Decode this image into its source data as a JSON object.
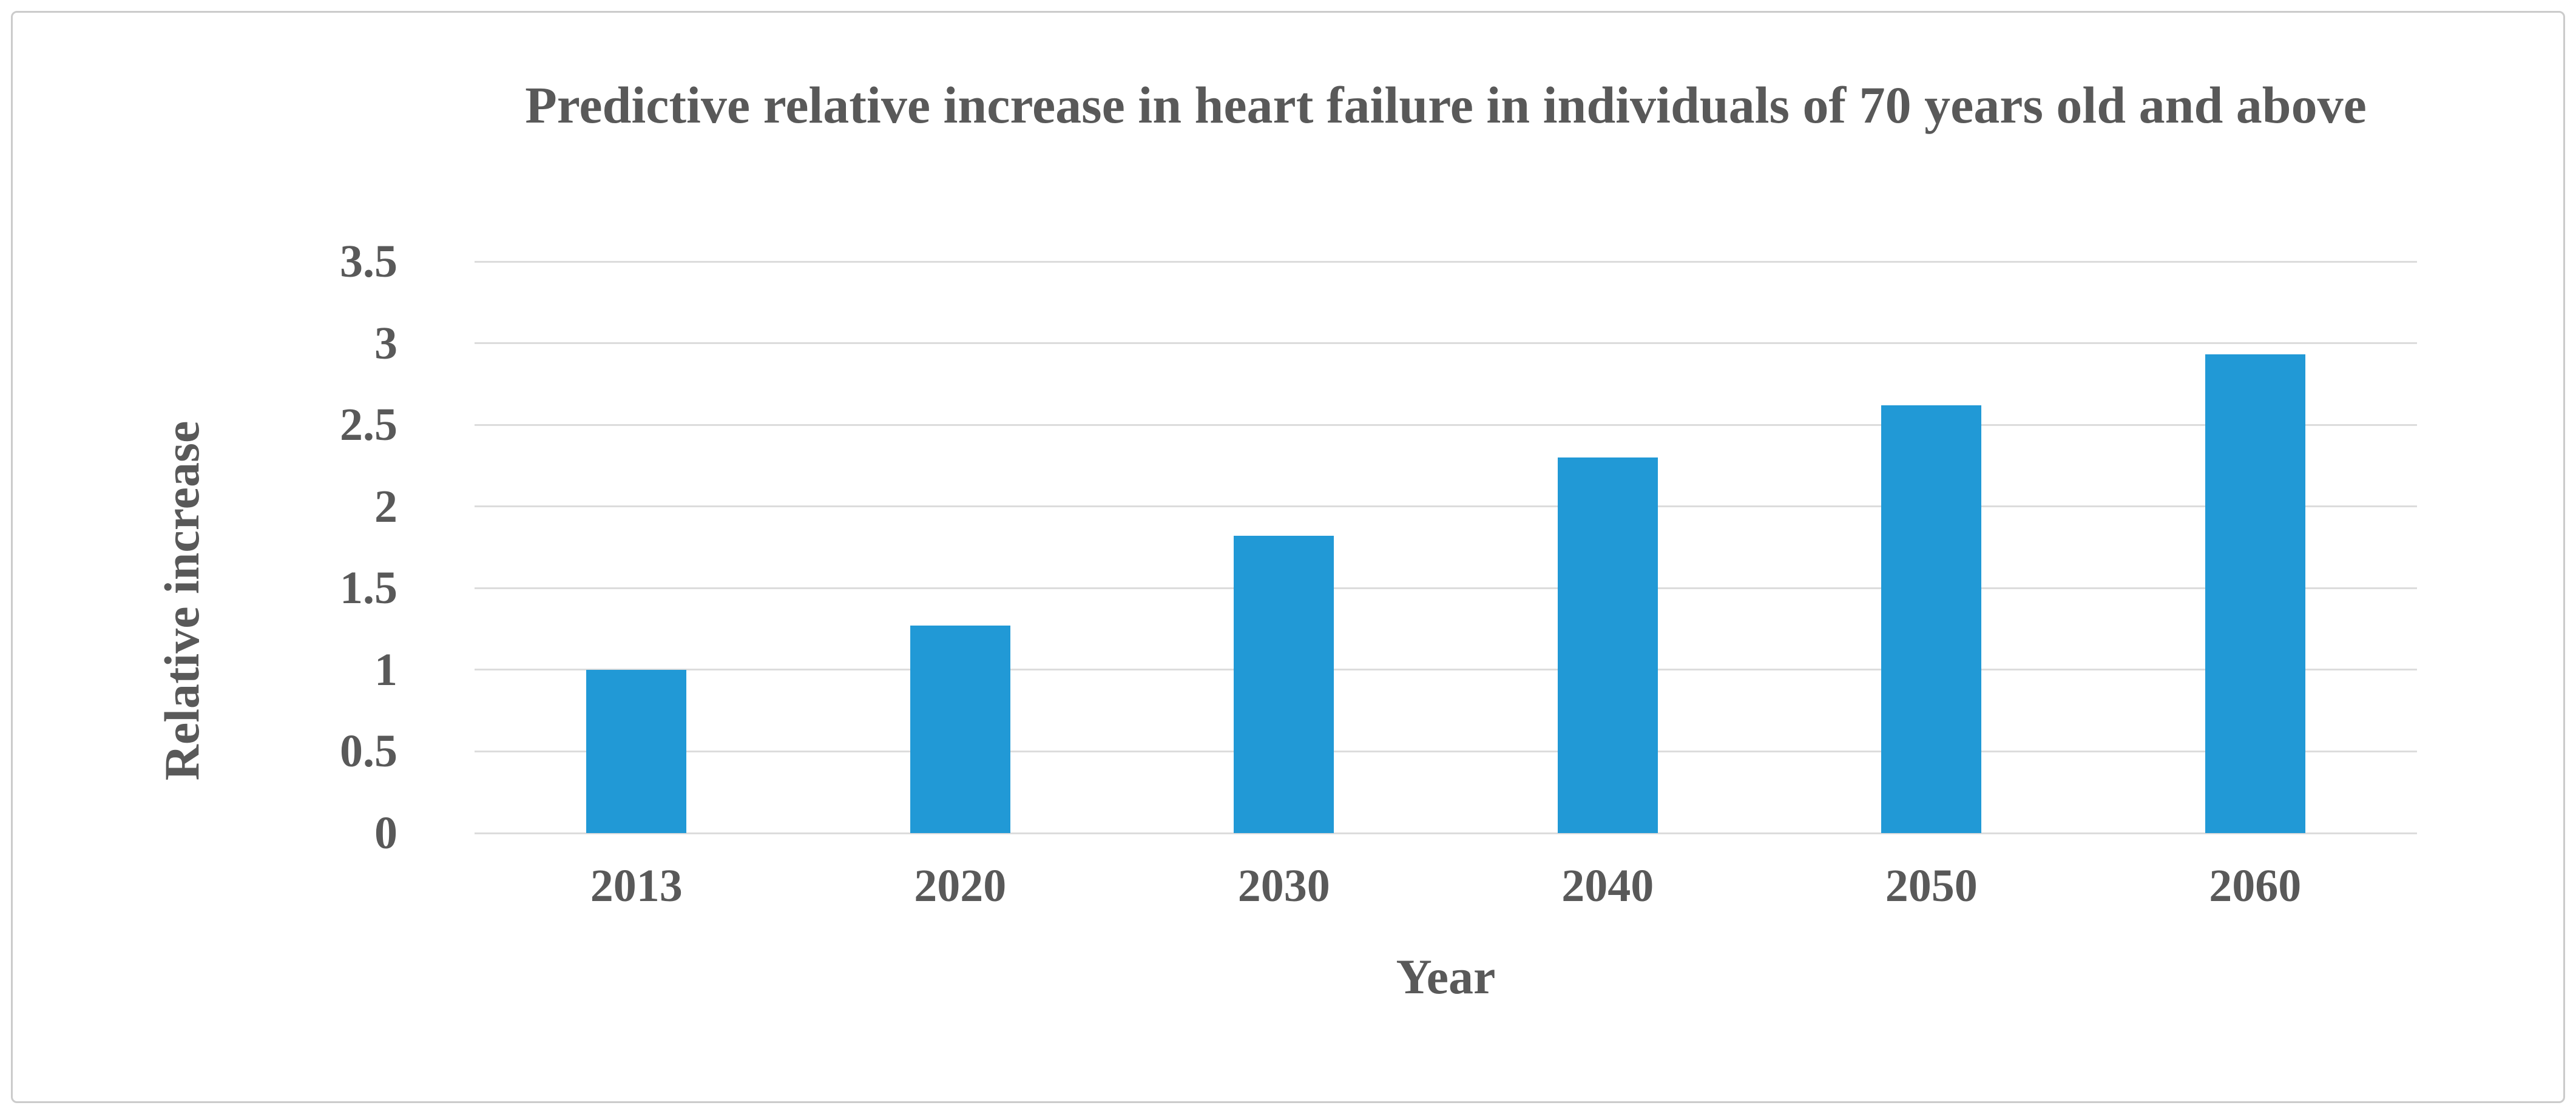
{
  "chart_data": {
    "type": "bar",
    "title": "Predictive relative increase in heart failure in individuals of 70 years old and above",
    "xlabel": "Year",
    "ylabel": "Relative increase",
    "categories": [
      "2013",
      "2020",
      "2030",
      "2040",
      "2050",
      "2060"
    ],
    "values": [
      1.0,
      1.27,
      1.82,
      2.3,
      2.62,
      2.93
    ],
    "ylim": [
      0,
      3.5
    ],
    "yticks": [
      0,
      0.5,
      1,
      1.5,
      2,
      2.5,
      3,
      3.5
    ],
    "ytick_labels": [
      "0",
      "0.5",
      "1",
      "1.5",
      "2",
      "2.5",
      "3",
      "3.5"
    ],
    "grid": "horizontal",
    "legend_position": "none",
    "bar_color": "#2199d6",
    "grid_color": "#dcdcdc",
    "text_color": "#595959",
    "frame_border_color": "#cbcbcb",
    "background_color": "#ffffff"
  }
}
